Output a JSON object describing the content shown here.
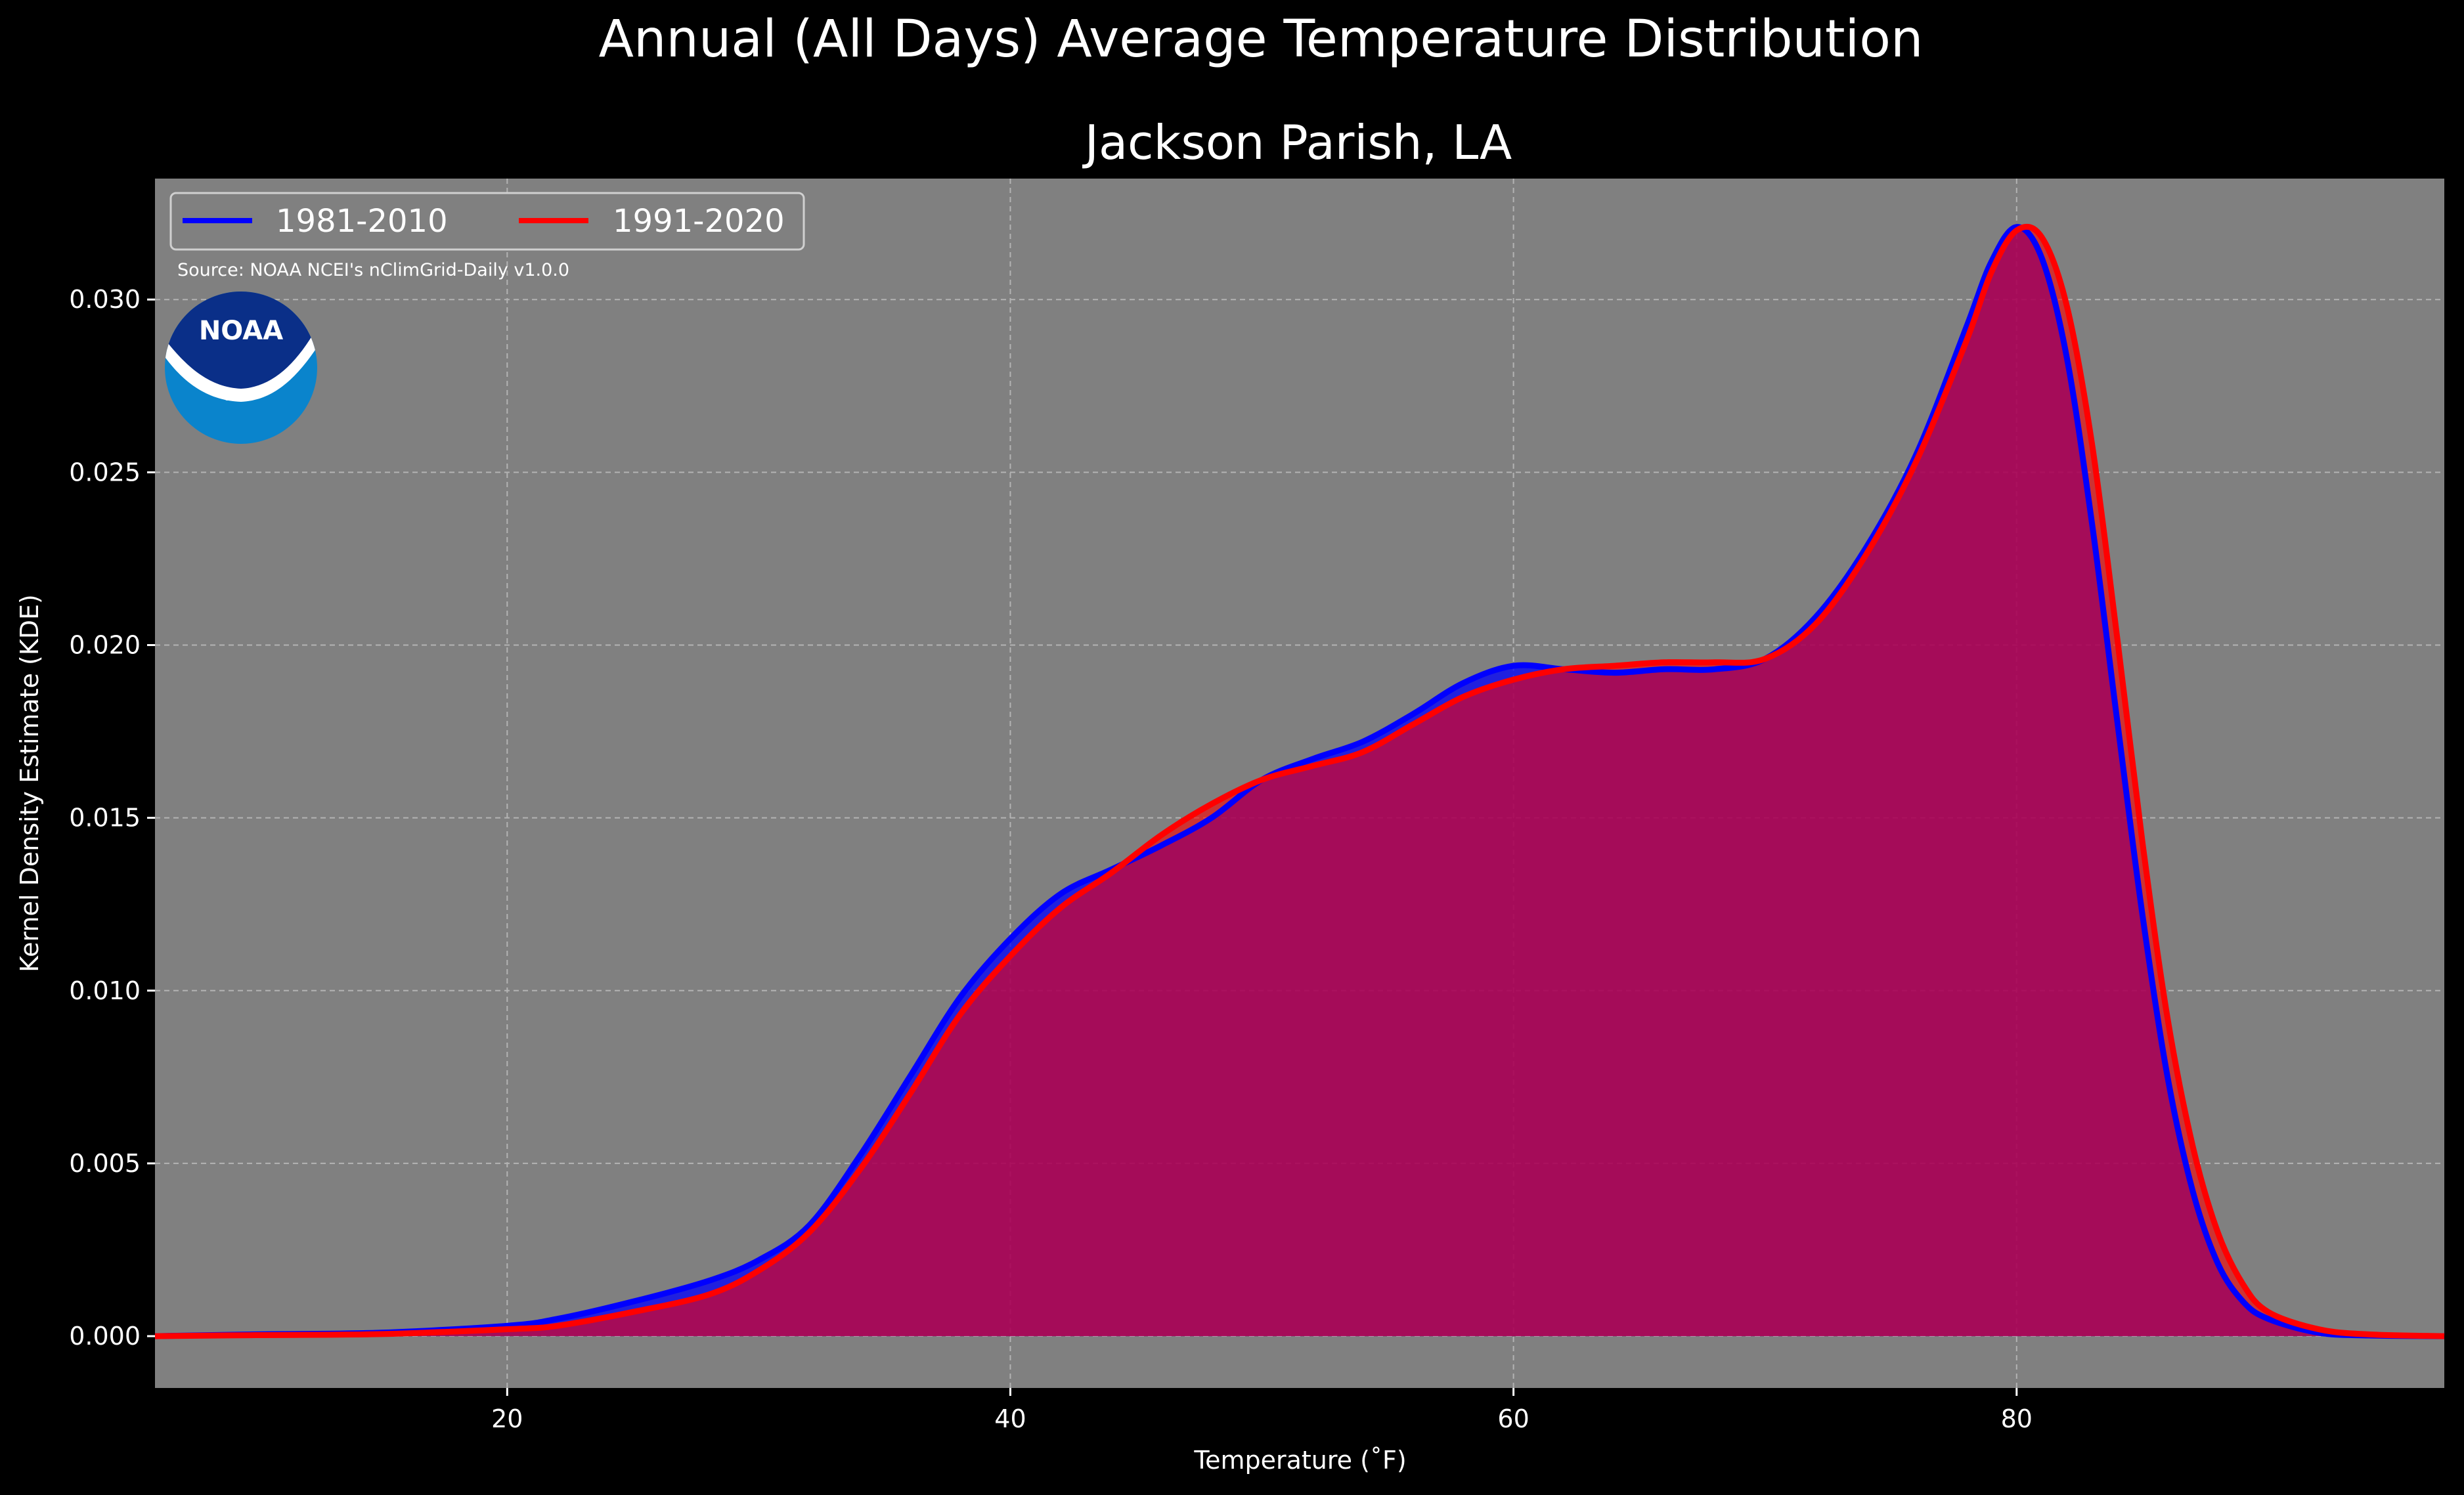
{
  "suptitle": "Annual (All Days) Average Temperature Distribution",
  "title": "Jackson Parish, LA",
  "source_note": "Source: NOAA NCEI's nClimGrid-Daily v1.0.0",
  "logo": {
    "text": "NOAA",
    "icon": "noaa-logo-icon",
    "colors": {
      "top": "#0a2f88",
      "bottom": "#0a84cc",
      "bird": "#ffffff"
    }
  },
  "colors": {
    "background": "#000000",
    "plot_bg": "#808080",
    "grid": "#b3b3b3",
    "series_1981": "#0000ff",
    "series_1991": "#ff0000",
    "fill": "#9b1f5c"
  },
  "chart_data": {
    "type": "area",
    "xlabel": "Temperature ($^\\circ$F)",
    "xlabel_display": "Temperature (˚F)",
    "ylabel": "Kernel Density Estimate (KDE)",
    "xlim": [
      6,
      97
    ],
    "ylim": [
      -0.0015,
      0.0335
    ],
    "xticks": [
      20,
      40,
      60,
      80
    ],
    "yticks": [
      0.0,
      0.005,
      0.01,
      0.015,
      0.02,
      0.025,
      0.03
    ],
    "ytick_labels": [
      "0.000",
      "0.005",
      "0.010",
      "0.015",
      "0.020",
      "0.025",
      "0.030"
    ],
    "grid": true,
    "legend_position": "top-left",
    "series": [
      {
        "name": "1981-2010",
        "color": "#0000ff",
        "x": [
          6,
          10,
          15,
          20,
          22,
          25,
          28,
          30,
          32,
          34,
          36,
          38,
          40,
          42,
          44,
          46,
          48,
          50,
          52,
          54,
          56,
          58,
          60,
          62,
          64,
          66,
          68,
          70,
          72,
          74,
          76,
          78,
          79,
          80,
          81,
          82,
          83,
          84,
          85,
          86,
          87,
          88,
          89,
          90,
          92,
          94,
          97
        ],
        "y": [
          0.0,
          5e-05,
          0.0001,
          0.0003,
          0.0005,
          0.001,
          0.0016,
          0.0022,
          0.0032,
          0.0052,
          0.0075,
          0.0098,
          0.0115,
          0.0128,
          0.0135,
          0.0142,
          0.015,
          0.0161,
          0.0167,
          0.0172,
          0.018,
          0.0189,
          0.0194,
          0.0193,
          0.0192,
          0.0193,
          0.0193,
          0.0196,
          0.0208,
          0.0228,
          0.0255,
          0.0292,
          0.0311,
          0.0321,
          0.0312,
          0.0283,
          0.0235,
          0.0178,
          0.0122,
          0.0075,
          0.0042,
          0.0021,
          0.001,
          0.0005,
          0.0001,
          2e-05,
          0.0
        ]
      },
      {
        "name": "1991-2020",
        "color": "#ff0000",
        "x": [
          6,
          10,
          15,
          20,
          22,
          25,
          28,
          30,
          32,
          34,
          36,
          38,
          40,
          42,
          44,
          46,
          48,
          50,
          52,
          54,
          56,
          58,
          60,
          62,
          64,
          66,
          68,
          70,
          72,
          74,
          76,
          78,
          79,
          80,
          81,
          82,
          83,
          84,
          85,
          86,
          87,
          88,
          89,
          90,
          92,
          94,
          97
        ],
        "y": [
          0.0,
          3e-05,
          6e-05,
          0.0002,
          0.0003,
          0.0007,
          0.0012,
          0.0019,
          0.003,
          0.0048,
          0.007,
          0.0093,
          0.011,
          0.0124,
          0.0134,
          0.0145,
          0.0154,
          0.0161,
          0.0165,
          0.0169,
          0.0177,
          0.0185,
          0.019,
          0.0193,
          0.0194,
          0.0195,
          0.0195,
          0.0196,
          0.0206,
          0.0226,
          0.0253,
          0.0288,
          0.0308,
          0.032,
          0.0318,
          0.0298,
          0.0258,
          0.0202,
          0.0143,
          0.0092,
          0.0055,
          0.003,
          0.0015,
          0.0007,
          0.0002,
          5e-05,
          0.0
        ]
      }
    ]
  }
}
